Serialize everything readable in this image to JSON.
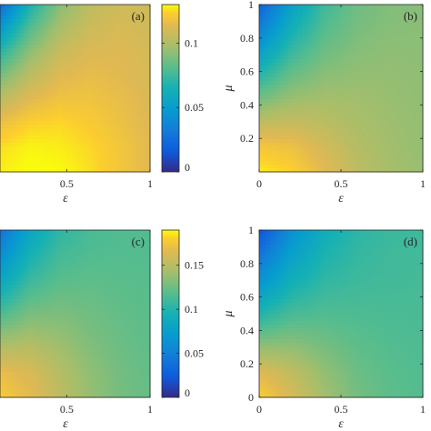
{
  "chart_data": [
    {
      "type": "heatmap",
      "panel_label": "(a)",
      "xlabel": "ε",
      "ylabel": "",
      "x_ticks": [
        "0.5",
        "1"
      ],
      "x_tick_values": [
        0.5,
        1
      ],
      "y_ticks": [],
      "xlim": [
        0.1,
        1
      ],
      "ylim": [
        0,
        1
      ],
      "colorbar": {
        "ticks": [
          "0",
          "0.05",
          "0.1"
        ],
        "tick_values": [
          0,
          0.05,
          0.1
        ],
        "range": [
          0,
          0.13
        ]
      },
      "values": [
        [
          0.128,
          0.131,
          0.13,
          0.126,
          0.12,
          0.114
        ],
        [
          0.126,
          0.129,
          0.128,
          0.125,
          0.12,
          0.114
        ],
        [
          0.118,
          0.124,
          0.125,
          0.122,
          0.118,
          0.113
        ],
        [
          0.104,
          0.114,
          0.119,
          0.119,
          0.116,
          0.112
        ],
        [
          0.088,
          0.104,
          0.113,
          0.116,
          0.114,
          0.111
        ],
        [
          0.07,
          0.093,
          0.107,
          0.112,
          0.113,
          0.11
        ],
        [
          0.048,
          0.08,
          0.099,
          0.108,
          0.111,
          0.109
        ],
        [
          0.022,
          0.066,
          0.091,
          0.104,
          0.109,
          0.108
        ]
      ]
    },
    {
      "type": "heatmap",
      "panel_label": "(b)",
      "xlabel": "ε",
      "ylabel": "μ",
      "x_ticks": [
        "0",
        "0.5",
        "1"
      ],
      "x_tick_values": [
        0,
        0.5,
        1
      ],
      "y_ticks": [
        "0.2",
        "0.4",
        "0.6",
        "0.8",
        "1"
      ],
      "y_tick_values": [
        0.2,
        0.4,
        0.6,
        0.8,
        1
      ],
      "xlim": [
        0,
        1
      ],
      "ylim": [
        0,
        1
      ],
      "values": [
        [
          0.128,
          0.124,
          0.114,
          0.104,
          0.098,
          0.095
        ],
        [
          0.121,
          0.118,
          0.11,
          0.102,
          0.097,
          0.094
        ],
        [
          0.106,
          0.107,
          0.104,
          0.099,
          0.096,
          0.094
        ],
        [
          0.088,
          0.096,
          0.098,
          0.097,
          0.095,
          0.093
        ],
        [
          0.07,
          0.085,
          0.092,
          0.094,
          0.094,
          0.093
        ],
        [
          0.052,
          0.074,
          0.086,
          0.091,
          0.093,
          0.092
        ],
        [
          0.034,
          0.063,
          0.08,
          0.088,
          0.091,
          0.092
        ],
        [
          0.018,
          0.053,
          0.075,
          0.086,
          0.09,
          0.091
        ]
      ]
    },
    {
      "type": "heatmap",
      "panel_label": "(c)",
      "xlabel": "ε",
      "ylabel": "",
      "x_ticks": [
        "0.5",
        "1"
      ],
      "x_tick_values": [
        0.5,
        1
      ],
      "y_ticks": [],
      "xlim": [
        0.1,
        1
      ],
      "ylim": [
        0,
        1
      ],
      "colorbar": {
        "ticks": [
          "0",
          "0.05",
          "0.1",
          "0.15"
        ],
        "tick_values": [
          0,
          0.05,
          0.1,
          0.15
        ],
        "range": [
          0,
          0.19
        ]
      },
      "values": [
        [
          0.178,
          0.168,
          0.152,
          0.138,
          0.128,
          0.123
        ],
        [
          0.17,
          0.163,
          0.149,
          0.136,
          0.127,
          0.122
        ],
        [
          0.15,
          0.151,
          0.142,
          0.132,
          0.125,
          0.121
        ],
        [
          0.126,
          0.136,
          0.134,
          0.128,
          0.123,
          0.12
        ],
        [
          0.102,
          0.121,
          0.126,
          0.124,
          0.121,
          0.119
        ],
        [
          0.08,
          0.107,
          0.118,
          0.12,
          0.119,
          0.118
        ],
        [
          0.06,
          0.094,
          0.111,
          0.116,
          0.117,
          0.117
        ],
        [
          0.04,
          0.082,
          0.104,
          0.113,
          0.116,
          0.116
        ]
      ]
    },
    {
      "type": "heatmap",
      "panel_label": "(d)",
      "xlabel": "ε",
      "ylabel": "μ",
      "x_ticks": [
        "0",
        "0.5",
        "1"
      ],
      "x_tick_values": [
        0,
        0.5,
        1
      ],
      "y_ticks": [
        "0",
        "0.2",
        "0.4",
        "0.6",
        "0.8",
        "1"
      ],
      "y_tick_values": [
        0,
        0.2,
        0.4,
        0.6,
        0.8,
        1
      ],
      "xlim": [
        0,
        1
      ],
      "ylim": [
        0,
        1
      ],
      "values": [
        [
          0.18,
          0.162,
          0.142,
          0.128,
          0.12,
          0.117
        ],
        [
          0.166,
          0.154,
          0.137,
          0.125,
          0.119,
          0.116
        ],
        [
          0.14,
          0.138,
          0.129,
          0.121,
          0.117,
          0.115
        ],
        [
          0.112,
          0.121,
          0.12,
          0.117,
          0.115,
          0.114
        ],
        [
          0.086,
          0.105,
          0.112,
          0.113,
          0.113,
          0.113
        ],
        [
          0.062,
          0.09,
          0.104,
          0.109,
          0.111,
          0.112
        ],
        [
          0.04,
          0.076,
          0.097,
          0.106,
          0.11,
          0.111
        ],
        [
          0.018,
          0.062,
          0.09,
          0.103,
          0.108,
          0.11
        ]
      ]
    }
  ]
}
